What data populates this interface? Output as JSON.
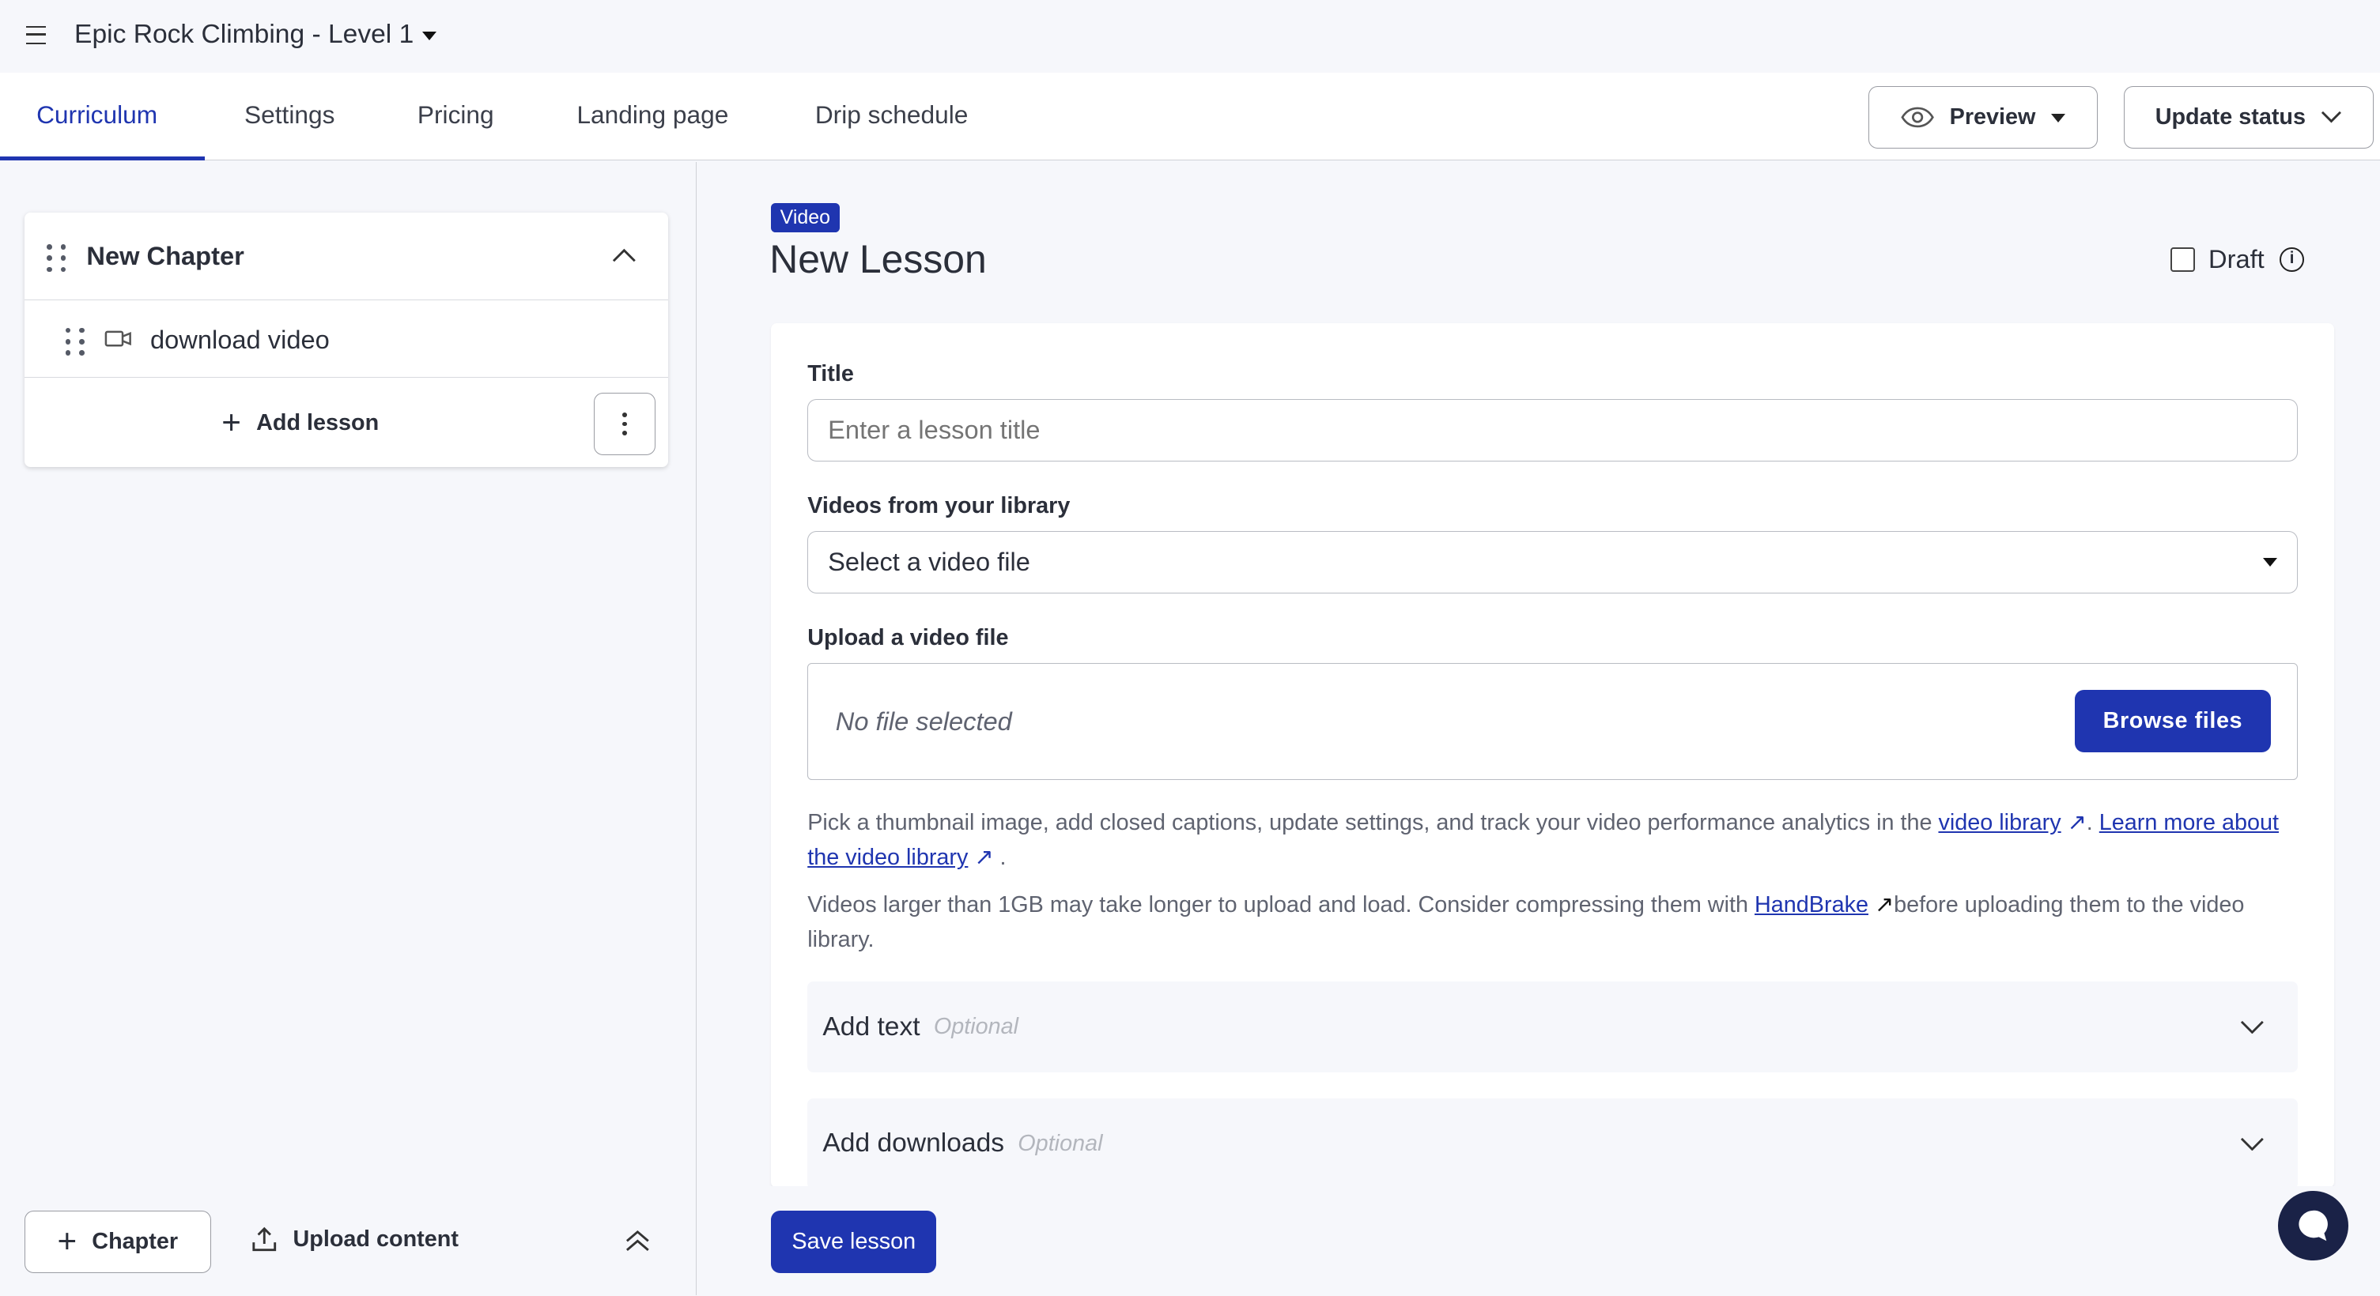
{
  "header": {
    "course_title": "Epic Rock Climbing - Level 1"
  },
  "tabs": [
    {
      "label": "Curriculum",
      "active": true
    },
    {
      "label": "Settings"
    },
    {
      "label": "Pricing"
    },
    {
      "label": "Landing page"
    },
    {
      "label": "Drip schedule"
    }
  ],
  "actions": {
    "preview": "Preview",
    "update_status": "Update status"
  },
  "sidebar": {
    "chapter": {
      "title": "New Chapter",
      "lessons": [
        {
          "title": "download video",
          "icon": "video-camera-icon"
        }
      ]
    },
    "add_lesson": "Add lesson",
    "chapter_button": "Chapter",
    "upload_content": "Upload content"
  },
  "lesson": {
    "badge": "Video",
    "title": "New Lesson",
    "draft_label": "Draft",
    "draft_checked": false,
    "title_label": "Title",
    "title_placeholder": "Enter a lesson title",
    "library_label": "Videos from your library",
    "library_value": "Select a video file",
    "upload_label": "Upload a video file",
    "no_file": "No file selected",
    "browse": "Browse files",
    "help1_pre": "Pick a thumbnail image, add closed captions, update settings, and track your video performance analytics in the ",
    "help1_link1": "video library",
    "help1_mid": ". ",
    "help1_link2": "Learn more about the video library",
    "help1_end": ".",
    "help2_pre": "Videos larger than 1GB may take longer to upload and load. Consider compressing them with ",
    "help2_link": "HandBrake",
    "help2_post": "before uploading them to the video library.",
    "add_text": "Add text",
    "add_downloads": "Add downloads",
    "optional": "Optional",
    "save": "Save lesson"
  },
  "colors": {
    "accent": "#1f35b0",
    "chat": "#1a2247"
  }
}
